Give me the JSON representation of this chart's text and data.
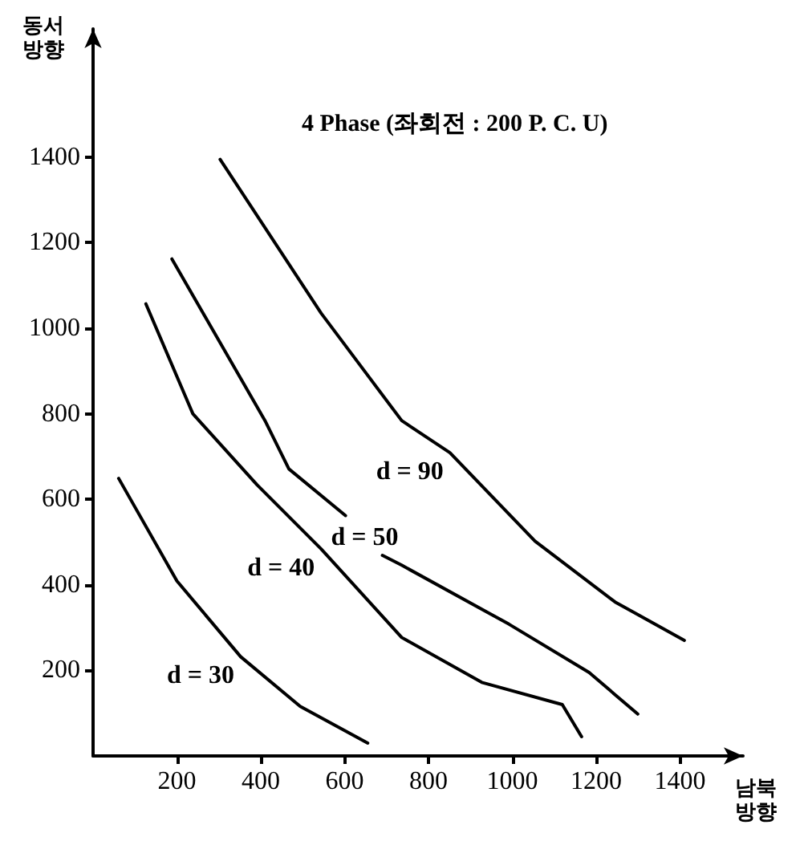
{
  "chart_data": {
    "type": "line",
    "title": "4 Phase (좌회전 : 200 P. C. U)",
    "xlabel": "남북\n방향",
    "ylabel": "동서\n방향",
    "xlim": [
      0,
      1550
    ],
    "ylim": [
      0,
      1700
    ],
    "xticks": [
      200,
      400,
      600,
      800,
      1000,
      1200,
      1400
    ],
    "yticks": [
      200,
      400,
      600,
      800,
      1000,
      1200,
      1400
    ],
    "grid": false,
    "marker": "none",
    "line_style": "solid",
    "series": [
      {
        "name": "d = 30",
        "color": "#000000",
        "x": [
          61,
          200,
          352,
          494,
          655
        ],
        "values": [
          649,
          409,
          232,
          116,
          30
        ]
      },
      {
        "name": "d = 40",
        "color": "#000000",
        "x": [
          126,
          238,
          391,
          544,
          736,
          927,
          1119,
          1165
        ],
        "values": [
          1057,
          800,
          634,
          484,
          277,
          172,
          120,
          45
        ]
      },
      {
        "name": "d = 50",
        "color": "#000000",
        "x": [
          188,
          410,
          467,
          602,
          640,
          690,
          736,
          992,
          1183,
          1299
        ],
        "values": [
          1162,
          784,
          671,
          562,
          null,
          469,
          446,
          308,
          195,
          98
        ]
      },
      {
        "name": "d = 90",
        "color": "#000000",
        "x": [
          303,
          544,
          736,
          851,
          1054,
          1245,
          1410
        ],
        "values": [
          1395,
          1035,
          784,
          709,
          502,
          360,
          270
        ]
      }
    ]
  }
}
